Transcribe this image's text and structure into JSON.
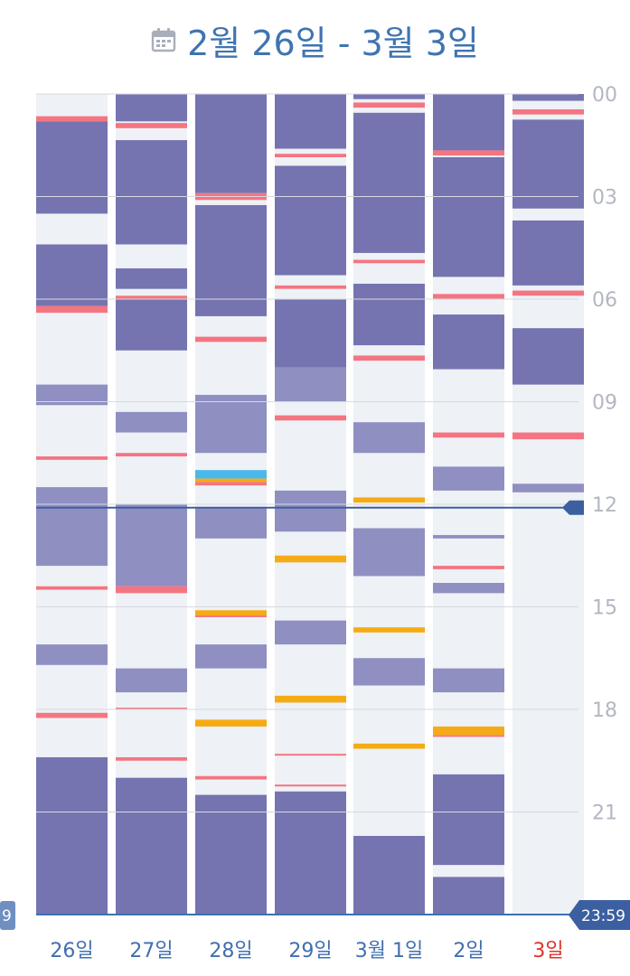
{
  "header": {
    "title": "2월 26일 - 3월 3일",
    "icon": "calendar-icon"
  },
  "hour_labels": [
    "00",
    "03",
    "06",
    "09",
    "12",
    "15",
    "18",
    "21"
  ],
  "end_badge": "23:59",
  "left_badge": "9",
  "now_marker_hour": 12.1,
  "colors": {
    "column_bg": "#eef1f5",
    "deep_sleep": "#7574b0",
    "light_sleep": "#8f8fc2",
    "wake": "#f47582",
    "orange": "#f5ab14",
    "blue": "#4ab8ea",
    "axis": "#3f6fb0",
    "today": "#e0322a"
  },
  "chart_data": {
    "type": "timeline",
    "y_range_hours": [
      0,
      24
    ],
    "days": [
      {
        "label": "26일",
        "today": false,
        "segments": [
          {
            "s": 0.0,
            "e": 0.6,
            "k": "bg"
          },
          {
            "s": 0.65,
            "e": 0.8,
            "k": "wake"
          },
          {
            "s": 0.8,
            "e": 3.5,
            "k": "deep"
          },
          {
            "s": 4.4,
            "e": 6.2,
            "k": "deep"
          },
          {
            "s": 6.2,
            "e": 6.4,
            "k": "wake"
          },
          {
            "s": 8.5,
            "e": 9.1,
            "k": "light"
          },
          {
            "s": 10.6,
            "e": 10.7,
            "k": "wake"
          },
          {
            "s": 11.5,
            "e": 13.8,
            "k": "light"
          },
          {
            "s": 14.4,
            "e": 14.5,
            "k": "wake"
          },
          {
            "s": 16.1,
            "e": 16.7,
            "k": "light"
          },
          {
            "s": 18.1,
            "e": 18.25,
            "k": "wake"
          },
          {
            "s": 19.4,
            "e": 24.0,
            "k": "deep"
          }
        ]
      },
      {
        "label": "27일",
        "today": false,
        "segments": [
          {
            "s": 0.0,
            "e": 0.8,
            "k": "deep"
          },
          {
            "s": 0.85,
            "e": 1.0,
            "k": "wake"
          },
          {
            "s": 1.35,
            "e": 4.4,
            "k": "deep"
          },
          {
            "s": 5.1,
            "e": 5.7,
            "k": "deep"
          },
          {
            "s": 5.9,
            "e": 6.0,
            "k": "wake"
          },
          {
            "s": 6.0,
            "e": 7.5,
            "k": "deep"
          },
          {
            "s": 9.3,
            "e": 9.9,
            "k": "light"
          },
          {
            "s": 10.5,
            "e": 10.6,
            "k": "wake"
          },
          {
            "s": 12.0,
            "e": 14.4,
            "k": "light"
          },
          {
            "s": 14.4,
            "e": 14.6,
            "k": "wake"
          },
          {
            "s": 16.8,
            "e": 17.5,
            "k": "light"
          },
          {
            "s": 17.95,
            "e": 18.0,
            "k": "wake"
          },
          {
            "s": 19.4,
            "e": 19.5,
            "k": "wake"
          },
          {
            "s": 20.0,
            "e": 24.0,
            "k": "deep"
          }
        ]
      },
      {
        "label": "28일",
        "today": false,
        "segments": [
          {
            "s": 0.0,
            "e": 2.9,
            "k": "deep"
          },
          {
            "s": 2.9,
            "e": 3.1,
            "k": "wake"
          },
          {
            "s": 3.25,
            "e": 6.5,
            "k": "deep"
          },
          {
            "s": 7.1,
            "e": 7.25,
            "k": "wake"
          },
          {
            "s": 8.8,
            "e": 10.5,
            "k": "light"
          },
          {
            "s": 11.0,
            "e": 11.25,
            "k": "blue"
          },
          {
            "s": 11.25,
            "e": 11.35,
            "k": "orange"
          },
          {
            "s": 11.35,
            "e": 11.45,
            "k": "wake"
          },
          {
            "s": 12.1,
            "e": 13.0,
            "k": "light"
          },
          {
            "s": 15.1,
            "e": 15.25,
            "k": "orange"
          },
          {
            "s": 15.25,
            "e": 15.3,
            "k": "wake"
          },
          {
            "s": 16.1,
            "e": 16.8,
            "k": "light"
          },
          {
            "s": 18.3,
            "e": 18.5,
            "k": "orange"
          },
          {
            "s": 19.95,
            "e": 20.05,
            "k": "wake"
          },
          {
            "s": 20.5,
            "e": 24.0,
            "k": "deep"
          }
        ]
      },
      {
        "label": "29일",
        "today": false,
        "segments": [
          {
            "s": 0.0,
            "e": 1.6,
            "k": "deep"
          },
          {
            "s": 1.75,
            "e": 1.85,
            "k": "wake"
          },
          {
            "s": 2.1,
            "e": 5.3,
            "k": "deep"
          },
          {
            "s": 5.6,
            "e": 5.7,
            "k": "wake"
          },
          {
            "s": 6.0,
            "e": 8.0,
            "k": "deep"
          },
          {
            "s": 8.0,
            "e": 9.0,
            "k": "light"
          },
          {
            "s": 9.4,
            "e": 9.55,
            "k": "wake"
          },
          {
            "s": 11.6,
            "e": 12.8,
            "k": "light"
          },
          {
            "s": 13.5,
            "e": 13.7,
            "k": "orange"
          },
          {
            "s": 15.4,
            "e": 16.1,
            "k": "light"
          },
          {
            "s": 17.6,
            "e": 17.8,
            "k": "orange"
          },
          {
            "s": 19.3,
            "e": 19.35,
            "k": "wake"
          },
          {
            "s": 20.2,
            "e": 20.25,
            "k": "wake"
          },
          {
            "s": 20.4,
            "e": 24.0,
            "k": "deep"
          }
        ]
      },
      {
        "label": "3월 1일",
        "today": false,
        "segments": [
          {
            "s": 0.0,
            "e": 0.15,
            "k": "deep"
          },
          {
            "s": 0.25,
            "e": 0.4,
            "k": "wake"
          },
          {
            "s": 0.55,
            "e": 4.65,
            "k": "deep"
          },
          {
            "s": 4.85,
            "e": 4.95,
            "k": "wake"
          },
          {
            "s": 5.55,
            "e": 7.35,
            "k": "deep"
          },
          {
            "s": 7.65,
            "e": 7.8,
            "k": "wake"
          },
          {
            "s": 9.6,
            "e": 10.5,
            "k": "light"
          },
          {
            "s": 11.8,
            "e": 11.95,
            "k": "orange"
          },
          {
            "s": 12.7,
            "e": 14.1,
            "k": "light"
          },
          {
            "s": 15.6,
            "e": 15.75,
            "k": "orange"
          },
          {
            "s": 16.5,
            "e": 17.3,
            "k": "light"
          },
          {
            "s": 19.0,
            "e": 19.15,
            "k": "orange"
          },
          {
            "s": 21.7,
            "e": 24.0,
            "k": "deep"
          }
        ]
      },
      {
        "label": "2일",
        "today": false,
        "segments": [
          {
            "s": 0.0,
            "e": 1.65,
            "k": "deep"
          },
          {
            "s": 1.65,
            "e": 1.8,
            "k": "wake"
          },
          {
            "s": 1.85,
            "e": 5.35,
            "k": "deep"
          },
          {
            "s": 5.85,
            "e": 6.0,
            "k": "wake"
          },
          {
            "s": 6.45,
            "e": 8.05,
            "k": "deep"
          },
          {
            "s": 9.9,
            "e": 10.05,
            "k": "wake"
          },
          {
            "s": 10.9,
            "e": 11.6,
            "k": "light"
          },
          {
            "s": 12.9,
            "e": 13.0,
            "k": "light"
          },
          {
            "s": 13.8,
            "e": 13.9,
            "k": "wake"
          },
          {
            "s": 14.3,
            "e": 14.6,
            "k": "light"
          },
          {
            "s": 16.8,
            "e": 17.5,
            "k": "light"
          },
          {
            "s": 18.5,
            "e": 18.75,
            "k": "orange"
          },
          {
            "s": 18.75,
            "e": 18.8,
            "k": "wake"
          },
          {
            "s": 19.9,
            "e": 22.55,
            "k": "deep"
          },
          {
            "s": 22.9,
            "e": 24.0,
            "k": "deep"
          }
        ]
      },
      {
        "label": "3일",
        "today": true,
        "segments": [
          {
            "s": 0.0,
            "e": 0.2,
            "k": "deep"
          },
          {
            "s": 0.45,
            "e": 0.6,
            "k": "wake"
          },
          {
            "s": 0.75,
            "e": 3.35,
            "k": "deep"
          },
          {
            "s": 3.7,
            "e": 5.6,
            "k": "deep"
          },
          {
            "s": 5.75,
            "e": 5.9,
            "k": "wake"
          },
          {
            "s": 6.85,
            "e": 8.5,
            "k": "deep"
          },
          {
            "s": 9.9,
            "e": 10.1,
            "k": "wake"
          },
          {
            "s": 11.4,
            "e": 11.65,
            "k": "light"
          }
        ]
      }
    ]
  }
}
